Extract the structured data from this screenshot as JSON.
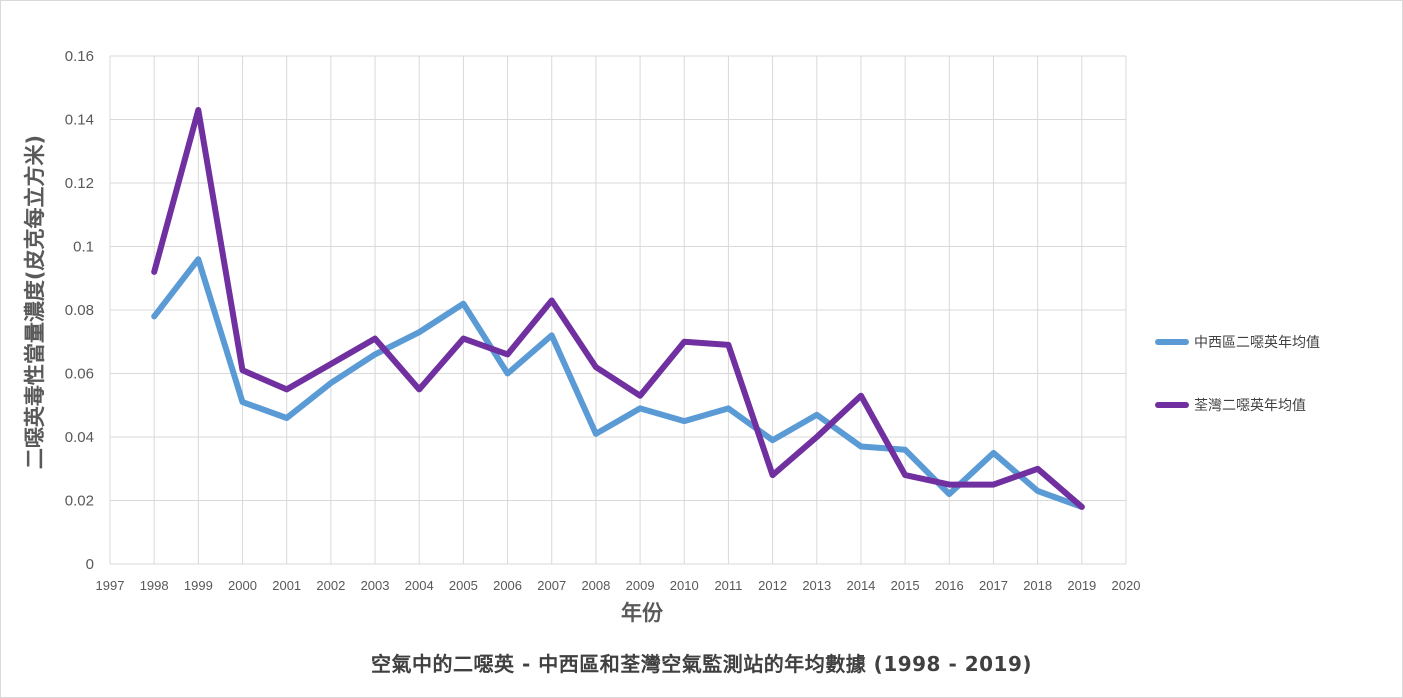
{
  "chart_data": {
    "type": "line",
    "title": "",
    "caption": "空氣中的二噁英 - 中西區和荃灣空氣監測站的年均數據 (1998 - 2019)",
    "xlabel": "年份",
    "ylabel": "二噁英毒性當量濃度(皮克每立方米)",
    "xlim": [
      1997,
      2020
    ],
    "ylim": [
      0,
      0.16
    ],
    "x_ticks": [
      "1997",
      "1998",
      "1999",
      "2000",
      "2001",
      "2002",
      "2003",
      "2004",
      "2005",
      "2006",
      "2007",
      "2008",
      "2009",
      "2010",
      "2011",
      "2012",
      "2013",
      "2014",
      "2015",
      "2016",
      "2017",
      "2018",
      "2019",
      "2020"
    ],
    "y_ticks": [
      "0",
      "0.02",
      "0.04",
      "0.06",
      "0.08",
      "0.1",
      "0.12",
      "0.14",
      "0.16"
    ],
    "grid": true,
    "legend_position": "right",
    "x": [
      1998,
      1999,
      2000,
      2001,
      2002,
      2003,
      2004,
      2005,
      2006,
      2007,
      2008,
      2009,
      2010,
      2011,
      2012,
      2013,
      2014,
      2015,
      2016,
      2017,
      2018,
      2019
    ],
    "series": [
      {
        "name": "中西區二噁英年均值",
        "color": "#5b9bd5",
        "values": [
          0.078,
          0.096,
          0.051,
          0.046,
          0.057,
          0.066,
          0.073,
          0.082,
          0.06,
          0.072,
          0.041,
          0.049,
          0.045,
          0.049,
          0.039,
          0.047,
          0.037,
          0.036,
          0.022,
          0.035,
          0.023,
          0.018
        ]
      },
      {
        "name": "荃灣二噁英年均值",
        "color": "#7030a0",
        "values": [
          0.092,
          0.143,
          0.061,
          0.055,
          0.063,
          0.071,
          0.055,
          0.071,
          0.066,
          0.083,
          0.062,
          0.053,
          0.07,
          0.069,
          0.028,
          0.04,
          0.053,
          0.028,
          0.025,
          0.025,
          0.03,
          0.018
        ]
      }
    ]
  }
}
